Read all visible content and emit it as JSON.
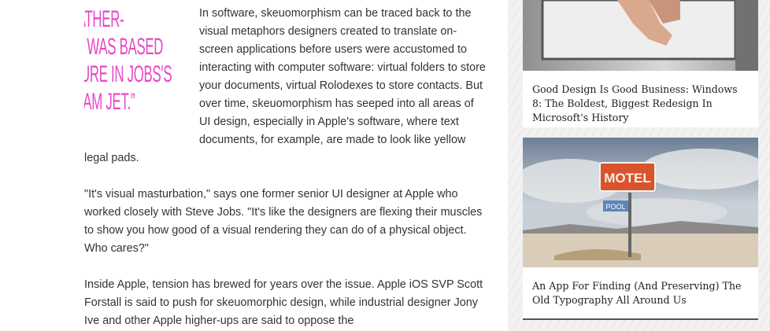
{
  "pull_quote": {
    "lines": [
      "“ICAL'S LEATHER-",
      "STITCHING WAS BASED",
      "ON A TEXTURE IN JOBS'S",
      "GULFSTREAM JET.”"
    ]
  },
  "article": {
    "paragraphs": [
      "In software, skeuomorphism can be traced back to the visual metaphors designers created to translate on-screen applications before users were accustomed to interacting with computer software: virtual folders to store your documents, virtual Rolodexes to store contacts. But over time, skeuomorphism has seeped into all areas of UI design, especially in Apple's software, where text documents, for example, are made to look like yellow legal pads.",
      "\"It's visual masturbation,\" says one former senior UI designer at Apple who worked closely with Steve Jobs. \"It's like the designers are flexing their muscles to show you how good of a visual rendering they can do of a physical object. Who cares?\"",
      "Inside Apple, tension has brewed for years over the issue. Apple iOS SVP Scott Forstall is said to push for skeuomorphic design, while industrial designer Jony Ive and other Apple higher-ups are said to oppose the"
    ]
  },
  "sidebar": {
    "cards": [
      {
        "title": "Good Design Is Good Business: Windows 8: The Boldest, Biggest Redesign In Microsoft's History"
      },
      {
        "title": "An App For Finding (And Preserving) The Old Typography All Around Us",
        "sign": "MOTEL",
        "sign_sub": "POOL"
      }
    ]
  }
}
